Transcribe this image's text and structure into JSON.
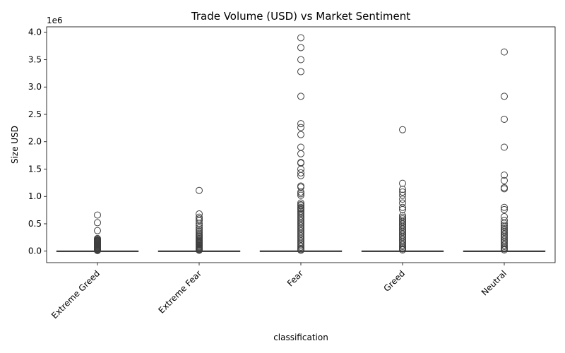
{
  "chart_data": {
    "type": "boxplot",
    "title": "Trade Volume (USD) vs Market Sentiment",
    "xlabel": "classification",
    "ylabel": "Size USD",
    "y_offset_label": "1e6",
    "y_scale": 1000000,
    "ylim": [
      -210000,
      4100000
    ],
    "yticks": [
      0,
      500000,
      1000000,
      1500000,
      2000000,
      2500000,
      3000000,
      3500000,
      4000000
    ],
    "ytick_labels": [
      "0.0",
      "0.5",
      "1.0",
      "1.5",
      "2.0",
      "2.5",
      "3.0",
      "3.5",
      "4.0"
    ],
    "grid": false,
    "categories": [
      "Extreme Greed",
      "Extreme Fear",
      "Fear",
      "Greed",
      "Neutral"
    ],
    "boxes": [
      {
        "category": "Extreme Greed",
        "q1": 200,
        "median": 800,
        "q3": 4000,
        "whisker_low": 0,
        "whisker_high": 9500,
        "outliers": [
          660000,
          520000,
          375000,
          230000,
          215000,
          205000,
          195000,
          185000,
          175000,
          165000,
          155000,
          145000,
          135000,
          125000,
          115000,
          105000,
          95000,
          85000,
          75000,
          65000,
          55000,
          45000,
          38000,
          31000,
          25000,
          20000,
          15000,
          11000
        ]
      },
      {
        "category": "Extreme Fear",
        "q1": 200,
        "median": 900,
        "q3": 4500,
        "whisker_low": 0,
        "whisker_high": 11000,
        "outliers": [
          1110000,
          680000,
          620000,
          590000,
          560000,
          510000,
          470000,
          430000,
          400000,
          370000,
          340000,
          310000,
          290000,
          270000,
          250000,
          230000,
          210000,
          195000,
          180000,
          165000,
          150000,
          135000,
          120000,
          105000,
          90000,
          75000,
          60000,
          48000,
          36000,
          25000,
          16000
        ]
      },
      {
        "category": "Fear",
        "q1": 200,
        "median": 1000,
        "q3": 5000,
        "whisker_low": 0,
        "whisker_high": 12000,
        "outliers": [
          3900000,
          3720000,
          3500000,
          3280000,
          2830000,
          2330000,
          2260000,
          2130000,
          1900000,
          1780000,
          1620000,
          1610000,
          1500000,
          1430000,
          1380000,
          1190000,
          1170000,
          1080000,
          1050000,
          1020000,
          880000,
          850000,
          830000,
          800000,
          780000,
          760000,
          730000,
          700000,
          670000,
          640000,
          610000,
          580000,
          550000,
          520000,
          490000,
          460000,
          430000,
          400000,
          370000,
          340000,
          310000,
          280000,
          250000,
          220000,
          190000,
          160000,
          130000,
          100000,
          75000,
          50000,
          30000,
          17000
        ]
      },
      {
        "category": "Greed",
        "q1": 200,
        "median": 900,
        "q3": 4500,
        "whisker_low": 0,
        "whisker_high": 11000,
        "outliers": [
          2220000,
          1240000,
          1130000,
          1080000,
          1020000,
          950000,
          880000,
          800000,
          760000,
          650000,
          620000,
          590000,
          560000,
          530000,
          500000,
          470000,
          440000,
          410000,
          380000,
          350000,
          320000,
          290000,
          260000,
          230000,
          200000,
          170000,
          140000,
          110000,
          85000,
          60000,
          40000,
          22000
        ]
      },
      {
        "category": "Neutral",
        "q1": 200,
        "median": 850,
        "q3": 4200,
        "whisker_low": 0,
        "whisker_high": 10000,
        "outliers": [
          3640000,
          2830000,
          2410000,
          1900000,
          1390000,
          1290000,
          1160000,
          1140000,
          800000,
          760000,
          630000,
          560000,
          510000,
          470000,
          440000,
          410000,
          380000,
          350000,
          320000,
          290000,
          260000,
          230000,
          200000,
          170000,
          140000,
          110000,
          85000,
          60000,
          40000,
          22000
        ]
      }
    ]
  }
}
